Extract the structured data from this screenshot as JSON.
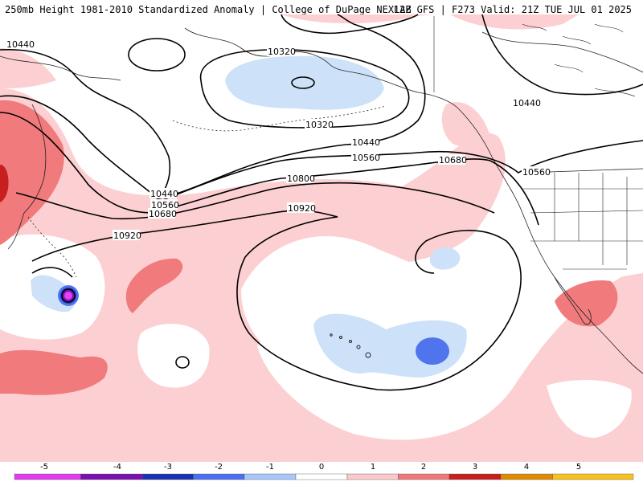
{
  "header": {
    "title_left": "250mb Height 1981-2010 Standardized Anomaly | College of DuPage NEXLAB",
    "title_right": "12Z GFS | F273 Valid: 21Z TUE JUL 01 2025"
  },
  "contours": [
    {
      "label": "10320",
      "label_instances": [
        "10320",
        "10320"
      ]
    },
    {
      "label": "10440",
      "label_instances": [
        "10440",
        "10440",
        "10440",
        "10440"
      ]
    },
    {
      "label": "10560",
      "label_instances": [
        "10560",
        "10560",
        "10560"
      ]
    },
    {
      "label": "10680",
      "label_instances": [
        "10680",
        "10680"
      ]
    },
    {
      "label": "10800",
      "label_instances": [
        "10800"
      ]
    },
    {
      "label": "10920",
      "label_instances": [
        "10920",
        "10920"
      ]
    }
  ],
  "colorbar": {
    "ticks": [
      "-5",
      "-4",
      "-3",
      "-2",
      "-1",
      "0",
      "1",
      "2",
      "3",
      "4",
      "5"
    ],
    "bins": [
      {
        "color": "#e03cf0"
      },
      {
        "color": "#7a10b0"
      },
      {
        "color": "#1a30b0"
      },
      {
        "color": "#4b6ff0"
      },
      {
        "color": "#a8c6f8"
      },
      {
        "color": "#ffffff"
      },
      {
        "color": "#fbc9cb"
      },
      {
        "color": "#f0787a"
      },
      {
        "color": "#c81e1e"
      },
      {
        "color": "#e08a00"
      },
      {
        "color": "#f7c21e"
      }
    ]
  },
  "colors": {
    "pos1": "#fcd0d2",
    "pos2": "#f07a7c",
    "pos3": "#c81e1e",
    "neg1": "#cde2f8",
    "neg2": "#4f74ee",
    "neg3": "#2036b8",
    "neg5": "#e63ef0",
    "contour": "#000000",
    "coast": "#222222"
  }
}
